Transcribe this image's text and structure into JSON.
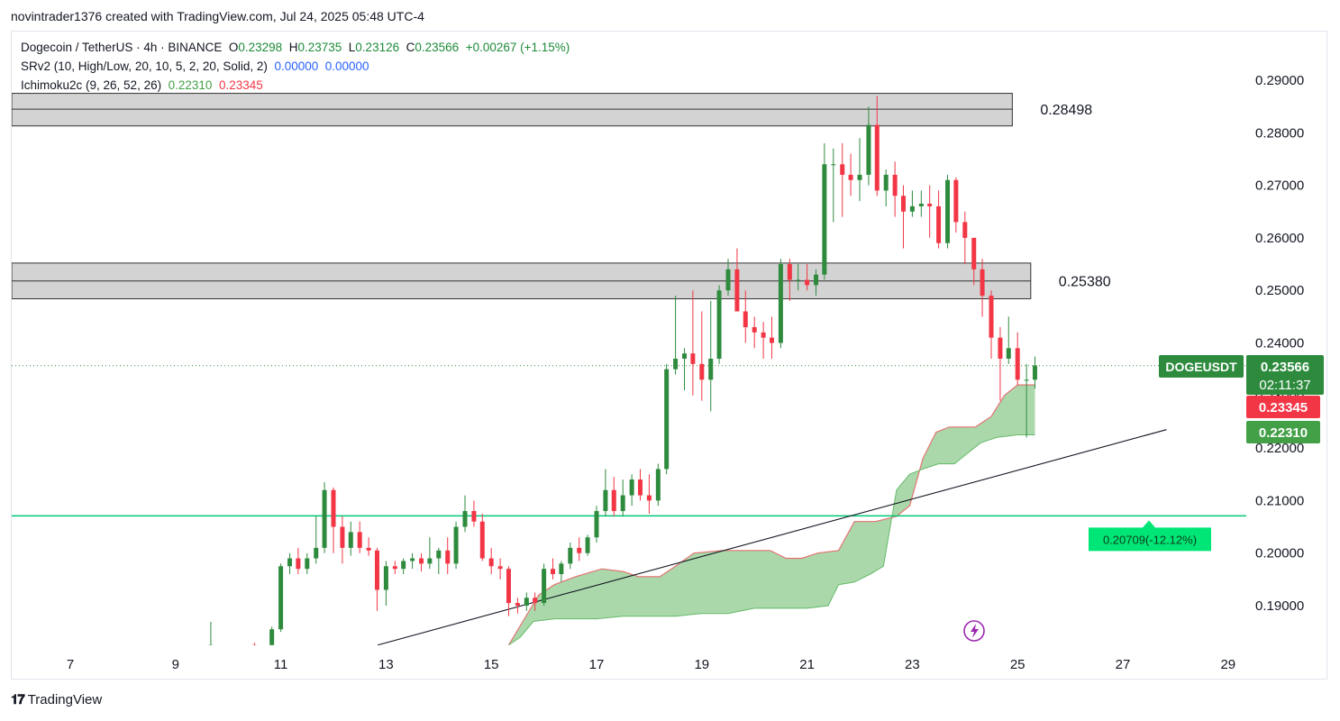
{
  "header": {
    "credit": "novintrader1376 created with TradingView.com, Jul 24, 2025 05:48 UTC-4"
  },
  "legend": {
    "symbol": "Dogecoin / TetherUS · 4h · BINANCE",
    "o_label": "O",
    "o": "0.23298",
    "h_label": "H",
    "h": "0.23735",
    "l_label": "L",
    "l": "0.23126",
    "c_label": "C",
    "c": "0.23566",
    "chg": "+0.00267 (+1.15%)",
    "srv2_label": "SRv2 (10, High/Low, 20, 10, 5, 2, 20, Solid, 2)",
    "srv2_v1": "0.00000",
    "srv2_v2": "0.00000",
    "ichi_label": "Ichimoku2c (9, 26, 52, 26)",
    "ichi_v1": "0.22310",
    "ichi_v2": "0.23345"
  },
  "footer": {
    "brand": "TradingView"
  },
  "colors": {
    "up": "#26a69a",
    "up_candle": "#2e8b3e",
    "down": "#f23645",
    "cloud": "#a5d6a7",
    "hline": "#00c853",
    "zone": "#d3d3d3"
  },
  "chart_data": {
    "type": "candlestick",
    "ylim": [
      0.1825,
      0.2945
    ],
    "yticks": [
      "0.29000",
      "0.28000",
      "0.27000",
      "0.26000",
      "0.25000",
      "0.24000",
      "0.23000",
      "0.22000",
      "0.21000",
      "0.20000",
      "0.19000"
    ],
    "ytick_values": [
      0.29,
      0.28,
      0.27,
      0.26,
      0.25,
      0.24,
      0.23,
      0.22,
      0.21,
      0.2,
      0.19
    ],
    "xlim": [
      6.0,
      29.5
    ],
    "xticks": [
      "7",
      "9",
      "11",
      "13",
      "15",
      "17",
      "19",
      "21",
      "23",
      "25",
      "27",
      "29"
    ],
    "xtick_values": [
      7,
      9,
      11,
      13,
      15,
      17,
      19,
      21,
      23,
      25,
      27,
      29
    ],
    "zones": [
      {
        "label": "0.28498",
        "top": 0.2875,
        "mid": 0.2845,
        "bottom": 0.2813,
        "x_end": 24.9
      },
      {
        "label": "0.25380",
        "top": 0.2552,
        "mid": 0.2518,
        "bottom": 0.2484,
        "x_end": 25.25
      }
    ],
    "support_line": {
      "value": 0.20709,
      "label": "0.20709(-12.12%)"
    },
    "trendline": [
      [
        12.84,
        0.1825
      ],
      [
        27.83,
        0.2235
      ]
    ],
    "price_badges": [
      {
        "name": "DOGEUSDT",
        "value": "0.23566",
        "time": "02:11:37",
        "color": "#2e8b3e"
      },
      {
        "value": "0.23345",
        "color": "#f23645"
      },
      {
        "value": "0.22310",
        "color": "#43a047"
      }
    ],
    "last_price": 0.23566,
    "candles": [
      [
        9.67,
        0.1825,
        0.1869,
        0.182,
        0.1825
      ],
      [
        10.5,
        0.1825,
        0.1829,
        0.182,
        0.1822
      ],
      [
        10.83,
        0.1825,
        0.186,
        0.182,
        0.1855
      ],
      [
        11.0,
        0.1855,
        0.198,
        0.185,
        0.1975
      ],
      [
        11.17,
        0.1975,
        0.2,
        0.196,
        0.199
      ],
      [
        11.33,
        0.199,
        0.201,
        0.196,
        0.197
      ],
      [
        11.5,
        0.197,
        0.2,
        0.196,
        0.199
      ],
      [
        11.67,
        0.199,
        0.207,
        0.198,
        0.201
      ],
      [
        11.83,
        0.201,
        0.2135,
        0.2,
        0.212
      ],
      [
        12.0,
        0.212,
        0.2125,
        0.2,
        0.205
      ],
      [
        12.17,
        0.205,
        0.207,
        0.198,
        0.201
      ],
      [
        12.33,
        0.201,
        0.206,
        0.1995,
        0.204
      ],
      [
        12.5,
        0.204,
        0.206,
        0.2,
        0.201
      ],
      [
        12.67,
        0.201,
        0.203,
        0.1995,
        0.2005
      ],
      [
        12.83,
        0.2005,
        0.201,
        0.189,
        0.193
      ],
      [
        13.0,
        0.193,
        0.1985,
        0.19,
        0.1975
      ],
      [
        13.17,
        0.1975,
        0.1985,
        0.196,
        0.197
      ],
      [
        13.33,
        0.197,
        0.199,
        0.196,
        0.1985
      ],
      [
        13.5,
        0.1985,
        0.2,
        0.197,
        0.199
      ],
      [
        13.67,
        0.199,
        0.2,
        0.1965,
        0.198
      ],
      [
        13.83,
        0.198,
        0.203,
        0.197,
        0.199
      ],
      [
        14.0,
        0.199,
        0.201,
        0.196,
        0.2005
      ],
      [
        14.17,
        0.2005,
        0.203,
        0.196,
        0.198
      ],
      [
        14.33,
        0.198,
        0.206,
        0.197,
        0.205
      ],
      [
        14.5,
        0.205,
        0.211,
        0.204,
        0.208
      ],
      [
        14.67,
        0.208,
        0.21,
        0.205,
        0.206
      ],
      [
        14.83,
        0.206,
        0.2075,
        0.1985,
        0.199
      ],
      [
        15.0,
        0.199,
        0.201,
        0.196,
        0.1975
      ],
      [
        15.17,
        0.1975,
        0.199,
        0.195,
        0.197
      ],
      [
        15.33,
        0.197,
        0.1975,
        0.188,
        0.1905
      ],
      [
        15.5,
        0.1905,
        0.1915,
        0.1885,
        0.19
      ],
      [
        15.67,
        0.19,
        0.1925,
        0.189,
        0.1915
      ],
      [
        15.83,
        0.1915,
        0.1925,
        0.189,
        0.1905
      ],
      [
        16.0,
        0.1905,
        0.198,
        0.19,
        0.197
      ],
      [
        16.17,
        0.197,
        0.199,
        0.195,
        0.196
      ],
      [
        16.33,
        0.196,
        0.1985,
        0.1945,
        0.198
      ],
      [
        16.5,
        0.198,
        0.202,
        0.197,
        0.201
      ],
      [
        16.67,
        0.201,
        0.203,
        0.1985,
        0.2
      ],
      [
        16.83,
        0.2,
        0.2035,
        0.1995,
        0.203
      ],
      [
        17.0,
        0.203,
        0.209,
        0.202,
        0.208
      ],
      [
        17.17,
        0.208,
        0.216,
        0.207,
        0.212
      ],
      [
        17.33,
        0.212,
        0.2145,
        0.207,
        0.208
      ],
      [
        17.5,
        0.208,
        0.214,
        0.207,
        0.211
      ],
      [
        17.67,
        0.211,
        0.215,
        0.209,
        0.214
      ],
      [
        17.83,
        0.214,
        0.216,
        0.21,
        0.211
      ],
      [
        18.0,
        0.211,
        0.215,
        0.2075,
        0.21
      ],
      [
        18.17,
        0.21,
        0.217,
        0.209,
        0.216
      ],
      [
        18.33,
        0.216,
        0.236,
        0.215,
        0.235
      ],
      [
        18.5,
        0.235,
        0.249,
        0.234,
        0.237
      ],
      [
        18.67,
        0.237,
        0.239,
        0.231,
        0.238
      ],
      [
        18.83,
        0.238,
        0.25,
        0.23,
        0.236
      ],
      [
        19.0,
        0.236,
        0.246,
        0.229,
        0.233
      ],
      [
        19.17,
        0.233,
        0.248,
        0.227,
        0.237
      ],
      [
        19.33,
        0.237,
        0.251,
        0.236,
        0.25
      ],
      [
        19.5,
        0.25,
        0.256,
        0.249,
        0.254
      ],
      [
        19.67,
        0.254,
        0.258,
        0.247,
        0.246
      ],
      [
        19.83,
        0.246,
        0.25,
        0.24,
        0.243
      ],
      [
        20.0,
        0.243,
        0.245,
        0.239,
        0.242
      ],
      [
        20.17,
        0.242,
        0.244,
        0.237,
        0.241
      ],
      [
        20.33,
        0.241,
        0.245,
        0.237,
        0.24
      ],
      [
        20.5,
        0.24,
        0.256,
        0.239,
        0.255
      ],
      [
        20.67,
        0.255,
        0.256,
        0.248,
        0.252
      ],
      [
        20.83,
        0.252,
        0.255,
        0.25,
        0.252
      ],
      [
        21.0,
        0.252,
        0.255,
        0.25,
        0.251
      ],
      [
        21.17,
        0.251,
        0.254,
        0.249,
        0.253
      ],
      [
        21.33,
        0.253,
        0.278,
        0.252,
        0.274
      ],
      [
        21.5,
        0.274,
        0.277,
        0.263,
        0.274
      ],
      [
        21.67,
        0.274,
        0.278,
        0.264,
        0.272
      ],
      [
        21.83,
        0.272,
        0.276,
        0.268,
        0.271
      ],
      [
        22.0,
        0.271,
        0.279,
        0.267,
        0.272
      ],
      [
        22.17,
        0.272,
        0.285,
        0.27,
        0.2815
      ],
      [
        22.33,
        0.2815,
        0.287,
        0.268,
        0.269
      ],
      [
        22.5,
        0.269,
        0.273,
        0.266,
        0.272
      ],
      [
        22.67,
        0.272,
        0.2745,
        0.264,
        0.268
      ],
      [
        22.83,
        0.268,
        0.27,
        0.258,
        0.265
      ],
      [
        23.0,
        0.265,
        0.269,
        0.264,
        0.266
      ],
      [
        23.17,
        0.266,
        0.269,
        0.264,
        0.2665
      ],
      [
        23.33,
        0.2665,
        0.27,
        0.26,
        0.266
      ],
      [
        23.5,
        0.266,
        0.269,
        0.258,
        0.259
      ],
      [
        23.67,
        0.259,
        0.272,
        0.258,
        0.271
      ],
      [
        23.83,
        0.271,
        0.2715,
        0.261,
        0.263
      ],
      [
        24.0,
        0.263,
        0.265,
        0.255,
        0.26
      ],
      [
        24.17,
        0.26,
        0.26,
        0.251,
        0.254
      ],
      [
        24.33,
        0.254,
        0.256,
        0.245,
        0.249
      ],
      [
        24.5,
        0.249,
        0.25,
        0.237,
        0.241
      ],
      [
        24.67,
        0.241,
        0.243,
        0.229,
        0.237
      ],
      [
        24.83,
        0.237,
        0.245,
        0.236,
        0.239
      ],
      [
        25.0,
        0.239,
        0.242,
        0.232,
        0.233
      ],
      [
        25.17,
        0.233,
        0.236,
        0.222,
        0.233
      ],
      [
        25.33,
        0.233,
        0.2374,
        0.2313,
        0.2357
      ]
    ],
    "cloud_top": [
      [
        15.33,
        0.1825
      ],
      [
        15.6,
        0.187
      ],
      [
        15.9,
        0.192
      ],
      [
        16.2,
        0.194
      ],
      [
        16.6,
        0.1955
      ],
      [
        17.1,
        0.197
      ],
      [
        17.5,
        0.1965
      ],
      [
        17.8,
        0.1955
      ],
      [
        18.2,
        0.1955
      ],
      [
        18.5,
        0.1975
      ],
      [
        18.85,
        0.2
      ],
      [
        19.4,
        0.2005
      ],
      [
        19.9,
        0.2005
      ],
      [
        20.3,
        0.2005
      ],
      [
        20.6,
        0.199
      ],
      [
        20.9,
        0.199
      ],
      [
        21.2,
        0.2
      ],
      [
        21.6,
        0.2005
      ],
      [
        21.9,
        0.206
      ],
      [
        22.3,
        0.206
      ],
      [
        22.7,
        0.207
      ],
      [
        22.95,
        0.209
      ],
      [
        23.2,
        0.218
      ],
      [
        23.45,
        0.223
      ],
      [
        23.7,
        0.224
      ],
      [
        24.2,
        0.224
      ],
      [
        24.5,
        0.226
      ],
      [
        24.75,
        0.23
      ],
      [
        25.0,
        0.232
      ],
      [
        25.33,
        0.232
      ]
    ],
    "cloud_bottom": [
      [
        15.33,
        0.1825
      ],
      [
        15.55,
        0.184
      ],
      [
        15.8,
        0.187
      ],
      [
        16.2,
        0.1875
      ],
      [
        16.6,
        0.1875
      ],
      [
        17.0,
        0.1875
      ],
      [
        17.5,
        0.188
      ],
      [
        18.0,
        0.188
      ],
      [
        18.5,
        0.188
      ],
      [
        19.0,
        0.1885
      ],
      [
        19.5,
        0.1885
      ],
      [
        20.0,
        0.1895
      ],
      [
        20.5,
        0.1895
      ],
      [
        21.0,
        0.1895
      ],
      [
        21.4,
        0.19
      ],
      [
        21.6,
        0.194
      ],
      [
        21.9,
        0.1945
      ],
      [
        22.2,
        0.196
      ],
      [
        22.45,
        0.1975
      ],
      [
        22.7,
        0.212
      ],
      [
        22.95,
        0.215
      ],
      [
        23.2,
        0.216
      ],
      [
        23.5,
        0.217
      ],
      [
        23.8,
        0.217
      ],
      [
        24.05,
        0.219
      ],
      [
        24.3,
        0.221
      ],
      [
        24.6,
        0.222
      ],
      [
        25.0,
        0.2225
      ],
      [
        25.33,
        0.2225
      ]
    ]
  }
}
